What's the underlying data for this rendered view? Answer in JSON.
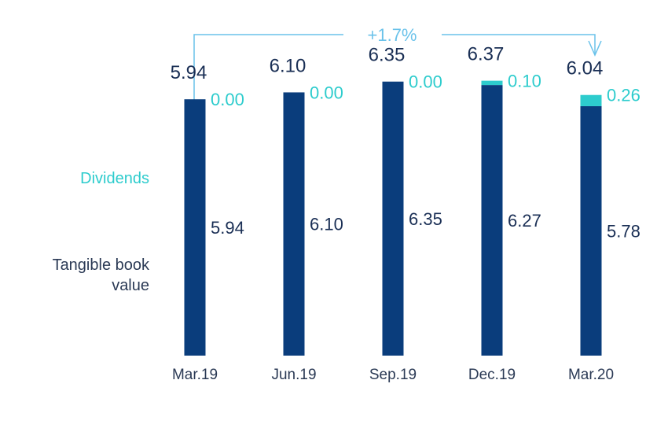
{
  "colors": {
    "tbv": "#0a3d7c",
    "dividends": "#2dcccd",
    "label_dark": "#1a2f55",
    "label_teal": "#2dcccd",
    "growth_line": "#6ac2ea",
    "axis_text": "#2b3a55"
  },
  "legend": {
    "dividends": "Dividends",
    "tangible_book_value": "Tangible book value"
  },
  "growth_annotation": "+1.7%",
  "chart_data": {
    "type": "bar",
    "stacked": true,
    "categories": [
      "Mar.19",
      "Jun.19",
      "Sep.19",
      "Dec.19",
      "Mar.20"
    ],
    "series": [
      {
        "name": "Tangible book value",
        "values": [
          5.94,
          6.1,
          6.35,
          6.27,
          5.78
        ],
        "labels": [
          "5.94",
          "6.10",
          "6.35",
          "6.27",
          "5.78"
        ]
      },
      {
        "name": "Dividends",
        "values": [
          0.0,
          0.0,
          0.0,
          0.1,
          0.26
        ],
        "labels": [
          "0.00",
          "0.00",
          "0.00",
          "0.10",
          "0.26"
        ]
      }
    ],
    "totals": [
      5.94,
      6.1,
      6.35,
      6.37,
      6.04
    ],
    "total_labels": [
      "5.94",
      "6.10",
      "6.35",
      "6.37",
      "6.04"
    ],
    "ylim": [
      0,
      6.6
    ],
    "grid": false,
    "legend_position": "left"
  }
}
